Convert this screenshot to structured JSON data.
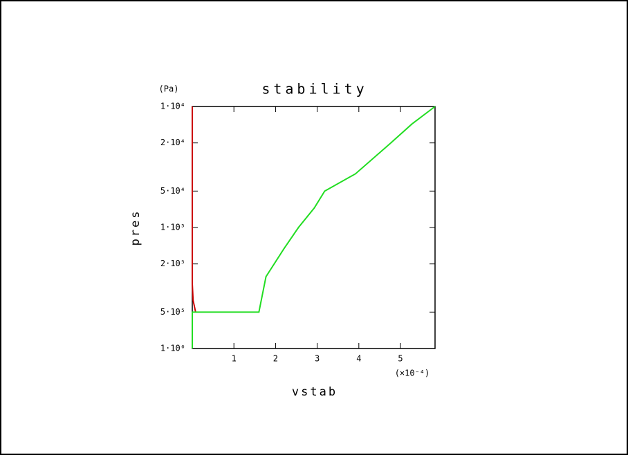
{
  "chart_data": {
    "type": "line",
    "title": "stability",
    "xlabel": "vstab",
    "ylabel": "pres",
    "y_unit": "(Pa)",
    "x_scale_note": "(×10⁻⁴)",
    "xlim": [
      0,
      5.83
    ],
    "xticks": [
      1,
      2,
      3,
      4,
      5
    ],
    "ylim": [
      1000000,
      10000
    ],
    "y_log": true,
    "yticks": [
      {
        "value": 10000,
        "label": "1·10⁴"
      },
      {
        "value": 20000,
        "label": "2·10⁴"
      },
      {
        "value": 50000,
        "label": "5·10⁴"
      },
      {
        "value": 100000,
        "label": "1·10⁵"
      },
      {
        "value": 200000,
        "label": "2·10⁵"
      },
      {
        "value": 500000,
        "label": "5·10⁵"
      },
      {
        "value": 1000000,
        "label": "1·10⁶"
      }
    ],
    "series": [
      {
        "color": "#cc0000",
        "x": [
          0,
          0,
          0.02,
          0.08
        ],
        "values": [
          10000,
          290000,
          400000,
          500000
        ]
      },
      {
        "color": "#22dd22",
        "x": [
          0,
          0,
          1.6,
          1.77,
          2.2,
          2.55,
          2.93,
          3.18,
          3.92,
          4.77,
          5.27,
          5.83
        ],
        "values": [
          1000000,
          500000,
          500000,
          255000,
          150000,
          100000,
          69000,
          50000,
          36000,
          20000,
          14000,
          10000
        ]
      }
    ]
  }
}
